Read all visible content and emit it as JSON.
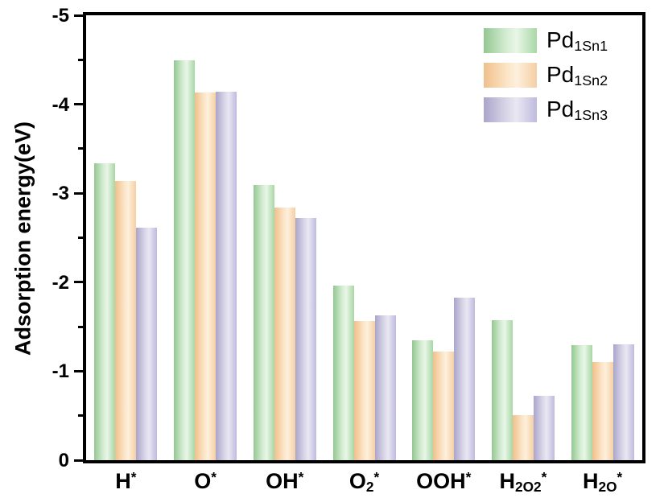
{
  "chart_data": {
    "type": "bar",
    "title": "",
    "xlabel": "",
    "ylabel": "Adsorption energy(eV)",
    "ylim": [
      0,
      -5
    ],
    "axis_inverted": true,
    "grid": false,
    "legend_position": "top-right",
    "frame": "full-box",
    "yticks": [
      0,
      -1,
      -2,
      -3,
      -4,
      -5
    ],
    "ytick_labels": [
      "0",
      "-1",
      "-2",
      "-3",
      "-4",
      "-5"
    ],
    "minor_yticks": [
      -0.5,
      -1.5,
      -2.5,
      -3.5,
      -4.5
    ],
    "categories": [
      "H*",
      "O*",
      "OH*",
      "O2*",
      "OOH*",
      "H2O2*",
      "H2O*"
    ],
    "category_display": [
      "H^*",
      "O^*",
      "OH^*",
      "O_2^*",
      "OOH^*",
      "H_2O_2^*",
      "H_2O^*"
    ],
    "series": [
      {
        "name": "Pd1Sn1",
        "display": "Pd_1Sn_1",
        "values": [
          -3.34,
          -4.49,
          -3.09,
          -1.96,
          -1.35,
          -1.57,
          -1.29
        ],
        "color_edge": "#94c791",
        "color_mid": "#d3ecd1",
        "color_highlight": "#e8f6e6",
        "color_right": "#a9d7a6"
      },
      {
        "name": "Pd1Sn2",
        "display": "Pd_1Sn_2",
        "values": [
          -3.14,
          -4.13,
          -2.84,
          -1.56,
          -1.22,
          -0.51,
          -1.1
        ],
        "color_edge": "#f0c08b",
        "color_mid": "#fbe3c4",
        "color_highlight": "#fdf0dd",
        "color_right": "#f5cfa3"
      },
      {
        "name": "Pd1Sn3",
        "display": "Pd_1Sn_3",
        "values": [
          -2.61,
          -4.14,
          -2.72,
          -1.63,
          -1.83,
          -0.72,
          -1.3
        ],
        "color_edge": "#aaa5cb",
        "color_mid": "#d8d5e7",
        "color_highlight": "#e9e7f2",
        "color_right": "#bebade"
      }
    ],
    "axis_color": "#000000",
    "background_color": "#ffffff"
  }
}
